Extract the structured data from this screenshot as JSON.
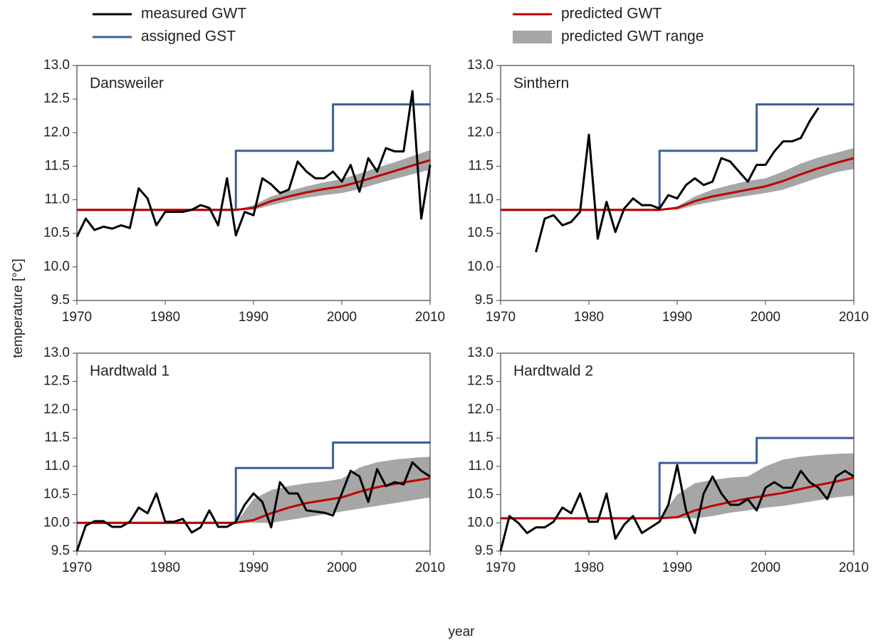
{
  "xlabel": "year",
  "ylabel": "temperature [°C]",
  "chart_data": [
    {
      "type": "line",
      "title": "Dansweiler",
      "x": [
        1970,
        1971,
        1972,
        1973,
        1974,
        1975,
        1976,
        1977,
        1978,
        1979,
        1980,
        1981,
        1982,
        1983,
        1984,
        1985,
        1986,
        1987,
        1988,
        1989,
        1990,
        1991,
        1992,
        1993,
        1994,
        1995,
        1996,
        1997,
        1998,
        1999,
        2000,
        2001,
        2002,
        2003,
        2004,
        2005,
        2006,
        2007,
        2008,
        2009,
        2010
      ],
      "xlim": [
        1970,
        2010
      ],
      "xticks": [
        1970,
        1980,
        1990,
        2000,
        2010
      ],
      "ylim": [
        9.5,
        13
      ],
      "yticks": [
        9.5,
        {
          "value": 10,
          "label": "10.0"
        },
        10.5,
        {
          "value": 11,
          "label": "11.0"
        },
        11.5,
        {
          "value": 12,
          "label": "12.0"
        },
        12.5,
        {
          "value": 13,
          "label": "13.0"
        }
      ],
      "series": [
        {
          "name": "measured GWT",
          "color": "#000000",
          "values": [
            10.45,
            10.72,
            10.55,
            10.6,
            10.57,
            10.62,
            10.58,
            11.17,
            11.02,
            10.62,
            10.82,
            10.82,
            10.82,
            10.85,
            10.92,
            10.88,
            10.62,
            11.32,
            10.47,
            10.82,
            10.77,
            11.32,
            11.23,
            11.1,
            11.15,
            11.57,
            11.42,
            11.32,
            11.32,
            11.42,
            11.27,
            11.52,
            11.12,
            11.62,
            11.42,
            11.77,
            11.72,
            11.72,
            12.62,
            10.72,
            11.52
          ]
        },
        {
          "name": "assigned GST",
          "color": "#3a5f9a",
          "x": [
            1970,
            1988,
            1988,
            1999,
            1999,
            2010
          ],
          "values": [
            10.85,
            10.85,
            11.73,
            11.73,
            12.42,
            12.42
          ]
        },
        {
          "name": "predicted GWT",
          "color": "#c00000",
          "x": [
            1970,
            1988,
            1990,
            1992,
            1994,
            1996,
            1998,
            2000,
            2002,
            2004,
            2006,
            2008,
            2010
          ],
          "values": [
            10.85,
            10.85,
            10.88,
            10.98,
            11.05,
            11.11,
            11.16,
            11.2,
            11.27,
            11.35,
            11.43,
            11.51,
            11.59
          ]
        },
        {
          "name": "predicted GWT range",
          "color": "#a6a6a6",
          "x": [
            1988,
            1990,
            1992,
            1994,
            1996,
            1998,
            2000,
            2002,
            2004,
            2006,
            2008,
            2010
          ],
          "lower": [
            10.85,
            10.85,
            10.92,
            10.98,
            11.03,
            11.07,
            11.1,
            11.16,
            11.24,
            11.31,
            11.38,
            11.45
          ],
          "upper": [
            10.85,
            10.92,
            11.05,
            11.13,
            11.2,
            11.26,
            11.31,
            11.39,
            11.48,
            11.56,
            11.65,
            11.74
          ]
        }
      ]
    },
    {
      "type": "line",
      "title": "Sinthern",
      "x": [
        1970,
        1971,
        1972,
        1973,
        1974,
        1975,
        1976,
        1977,
        1978,
        1979,
        1980,
        1981,
        1982,
        1983,
        1984,
        1985,
        1986,
        1987,
        1988,
        1989,
        1990,
        1991,
        1992,
        1993,
        1994,
        1995,
        1996,
        1997,
        1998,
        1999,
        2000,
        2001,
        2002,
        2003,
        2004,
        2005,
        2006,
        2007,
        2008,
        2009,
        2010
      ],
      "xlim": [
        1970,
        2010
      ],
      "xticks": [
        1970,
        1980,
        1990,
        2000,
        2010
      ],
      "ylim": [
        9.5,
        13
      ],
      "yticks": [
        9.5,
        {
          "value": 10,
          "label": "10.0"
        },
        10.5,
        {
          "value": 11,
          "label": "11.0"
        },
        11.5,
        {
          "value": 12,
          "label": "12.0"
        },
        12.5,
        {
          "value": 13,
          "label": "13.0"
        }
      ],
      "series": [
        {
          "color": "#000000",
          "values": [
            null,
            null,
            null,
            null,
            10.22,
            10.72,
            10.77,
            10.62,
            10.67,
            10.82,
            11.97,
            10.42,
            10.97,
            10.52,
            10.87,
            11.02,
            10.92,
            10.92,
            10.87,
            11.07,
            11.02,
            11.22,
            11.32,
            11.22,
            11.27,
            11.62,
            11.57,
            11.42,
            11.27,
            11.52,
            11.52,
            11.72,
            11.87,
            11.87,
            11.92,
            12.17,
            12.37,
            null,
            null,
            null,
            null
          ]
        },
        {
          "color": "#3a5f9a",
          "x": [
            1970,
            1988,
            1988,
            1999,
            1999,
            2010
          ],
          "values": [
            10.85,
            10.85,
            11.73,
            11.73,
            12.42,
            12.42
          ]
        },
        {
          "color": "#c00000",
          "x": [
            1970,
            1988,
            1990,
            1992,
            1994,
            1996,
            1998,
            2000,
            2002,
            2004,
            2006,
            2008,
            2010
          ],
          "values": [
            10.85,
            10.85,
            10.88,
            10.98,
            11.05,
            11.1,
            11.15,
            11.2,
            11.28,
            11.38,
            11.47,
            11.55,
            11.62
          ]
        },
        {
          "color": "#a6a6a6",
          "x": [
            1988,
            1990,
            1992,
            1994,
            1996,
            1998,
            2000,
            2002,
            2004,
            2006,
            2008,
            2010
          ],
          "lower": [
            10.85,
            10.85,
            10.92,
            10.97,
            11.02,
            11.06,
            11.1,
            11.15,
            11.24,
            11.33,
            11.41,
            11.46
          ],
          "upper": [
            10.85,
            10.9,
            11.05,
            11.15,
            11.22,
            11.28,
            11.32,
            11.42,
            11.54,
            11.63,
            11.7,
            11.77
          ]
        }
      ]
    },
    {
      "type": "line",
      "title": "Hardtwald 1",
      "x": [
        1970,
        1971,
        1972,
        1973,
        1974,
        1975,
        1976,
        1977,
        1978,
        1979,
        1980,
        1981,
        1982,
        1983,
        1984,
        1985,
        1986,
        1987,
        1988,
        1989,
        1990,
        1991,
        1992,
        1993,
        1994,
        1995,
        1996,
        1997,
        1998,
        1999,
        2000,
        2001,
        2002,
        2003,
        2004,
        2005,
        2006,
        2007,
        2008,
        2009,
        2010
      ],
      "xlim": [
        1970,
        2010
      ],
      "xticks": [
        1970,
        1980,
        1990,
        2000,
        2010
      ],
      "ylim": [
        9.5,
        13
      ],
      "yticks": [
        9.5,
        {
          "value": 10,
          "label": "10.0"
        },
        10.5,
        {
          "value": 11,
          "label": "11.0"
        },
        11.5,
        {
          "value": 12,
          "label": "12.0"
        },
        12.5,
        {
          "value": 13,
          "label": "13.0"
        }
      ],
      "series": [
        {
          "color": "#000000",
          "values": [
            9.5,
            9.95,
            10.03,
            10.03,
            9.93,
            9.93,
            10.02,
            10.27,
            10.17,
            10.52,
            10.02,
            10.02,
            10.07,
            9.83,
            9.92,
            10.22,
            9.93,
            9.93,
            10.02,
            10.32,
            10.52,
            10.37,
            9.92,
            10.72,
            10.52,
            10.52,
            10.22,
            10.2,
            10.18,
            10.13,
            10.52,
            10.92,
            10.82,
            10.37,
            10.95,
            10.65,
            10.72,
            10.68,
            11.07,
            10.92,
            10.82
          ]
        },
        {
          "color": "#3a5f9a",
          "x": [
            1970,
            1988,
            1988,
            1999,
            1999,
            2010
          ],
          "values": [
            10,
            10,
            10.97,
            10.97,
            11.42,
            11.42
          ]
        },
        {
          "color": "#c00000",
          "x": [
            1970,
            1988,
            1990,
            1992,
            1994,
            1996,
            1998,
            2000,
            2002,
            2004,
            2006,
            2008,
            2010
          ],
          "values": [
            10,
            10,
            10.05,
            10.17,
            10.27,
            10.35,
            10.4,
            10.45,
            10.55,
            10.63,
            10.69,
            10.74,
            10.79
          ]
        },
        {
          "color": "#a6a6a6",
          "x": [
            1988,
            1990,
            1992,
            1994,
            1996,
            1998,
            2000,
            2002,
            2004,
            2006,
            2008,
            2010
          ],
          "lower": [
            10,
            10,
            10,
            10.05,
            10.1,
            10.15,
            10.2,
            10.25,
            10.3,
            10.35,
            10.4,
            10.45
          ],
          "upper": [
            10,
            10.42,
            10.58,
            10.65,
            10.7,
            10.73,
            10.78,
            10.98,
            11.07,
            11.12,
            11.15,
            11.17
          ]
        }
      ]
    },
    {
      "type": "line",
      "title": "Hardtwald 2",
      "x": [
        1970,
        1971,
        1972,
        1973,
        1974,
        1975,
        1976,
        1977,
        1978,
        1979,
        1980,
        1981,
        1982,
        1983,
        1984,
        1985,
        1986,
        1987,
        1988,
        1989,
        1990,
        1991,
        1992,
        1993,
        1994,
        1995,
        1996,
        1997,
        1998,
        1999,
        2000,
        2001,
        2002,
        2003,
        2004,
        2005,
        2006,
        2007,
        2008,
        2009,
        2010
      ],
      "xlim": [
        1970,
        2010
      ],
      "xticks": [
        1970,
        1980,
        1990,
        2000,
        2010
      ],
      "ylim": [
        9.5,
        13
      ],
      "yticks": [
        9.5,
        {
          "value": 10,
          "label": "10.0"
        },
        10.5,
        {
          "value": 11,
          "label": "11.0"
        },
        11.5,
        {
          "value": 12,
          "label": "12.0"
        },
        12.5,
        {
          "value": 13,
          "label": "13.0"
        }
      ],
      "series": [
        {
          "color": "#000000",
          "values": [
            9.5,
            10.12,
            10,
            9.82,
            9.92,
            9.92,
            10.02,
            10.27,
            10.17,
            10.52,
            10.02,
            10.02,
            10.52,
            9.72,
            9.97,
            10.12,
            9.82,
            9.92,
            10.02,
            10.32,
            11.02,
            10.22,
            9.82,
            10.52,
            10.82,
            10.52,
            10.32,
            10.32,
            10.42,
            10.22,
            10.62,
            10.72,
            10.62,
            10.62,
            10.92,
            10.72,
            10.62,
            10.42,
            10.82,
            10.92,
            10.82
          ]
        },
        {
          "color": "#3a5f9a",
          "x": [
            1970,
            1988,
            1988,
            1999,
            1999,
            2010
          ],
          "values": [
            10.08,
            10.08,
            11.06,
            11.06,
            11.5,
            11.5
          ]
        },
        {
          "color": "#c00000",
          "x": [
            1970,
            1988,
            1990,
            1992,
            1994,
            1996,
            1998,
            2000,
            2002,
            2004,
            2006,
            2008,
            2010
          ],
          "values": [
            10.08,
            10.08,
            10.1,
            10.22,
            10.3,
            10.37,
            10.43,
            10.48,
            10.53,
            10.6,
            10.67,
            10.73,
            10.8
          ]
        },
        {
          "color": "#a6a6a6",
          "x": [
            1988,
            1990,
            1992,
            1994,
            1996,
            1998,
            2000,
            2002,
            2004,
            2006,
            2008,
            2010
          ],
          "lower": [
            10.08,
            10.08,
            10.08,
            10.12,
            10.18,
            10.22,
            10.27,
            10.3,
            10.35,
            10.4,
            10.45,
            10.48
          ],
          "upper": [
            10.08,
            10.5,
            10.7,
            10.76,
            10.8,
            10.82,
            11,
            11.12,
            11.17,
            11.2,
            11.22,
            11.23
          ]
        }
      ]
    }
  ]
}
